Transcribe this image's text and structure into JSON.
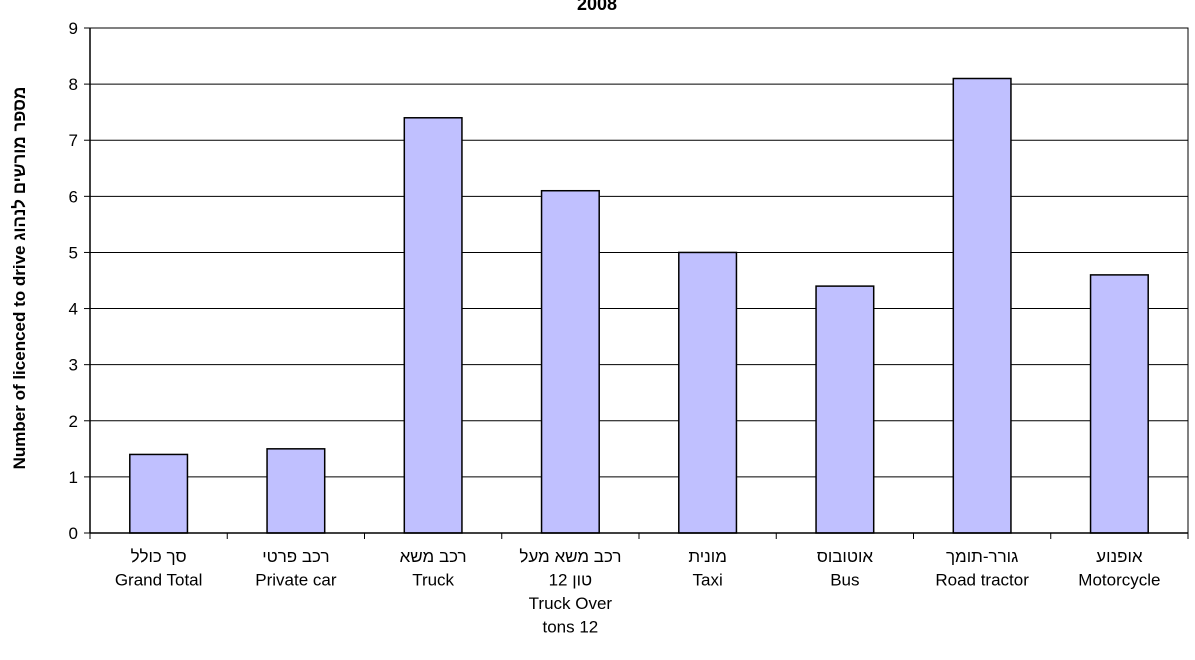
{
  "chart_data": {
    "type": "bar",
    "title": "2008",
    "ylabel": "Number of licenced to drive  מספר מורשים לנהוג",
    "xlabel": "",
    "ylim": [
      0,
      9
    ],
    "yticks": [
      0,
      1,
      2,
      3,
      4,
      5,
      6,
      7,
      8,
      9
    ],
    "grid": true,
    "legend": "none",
    "categories": [
      [
        "סך כולל",
        "Grand Total"
      ],
      [
        "רכב פרטי",
        "Private car"
      ],
      [
        "רכב משא",
        "Truck"
      ],
      [
        "רכב משא מעל",
        "12 טון",
        "Truck Over",
        "tons 12"
      ],
      [
        "מונית",
        "Taxi"
      ],
      [
        "אוטובוס",
        "Bus"
      ],
      [
        "גורר-תומך",
        "Road tractor"
      ],
      [
        "אופנוע",
        "Motorcycle"
      ]
    ],
    "values": [
      1.4,
      1.5,
      7.4,
      6.1,
      5.0,
      4.4,
      8.1,
      4.6
    ],
    "colors": {
      "bar_fill": "#c0c0ff",
      "bar_stroke": "#000000",
      "grid": "#000000"
    }
  }
}
